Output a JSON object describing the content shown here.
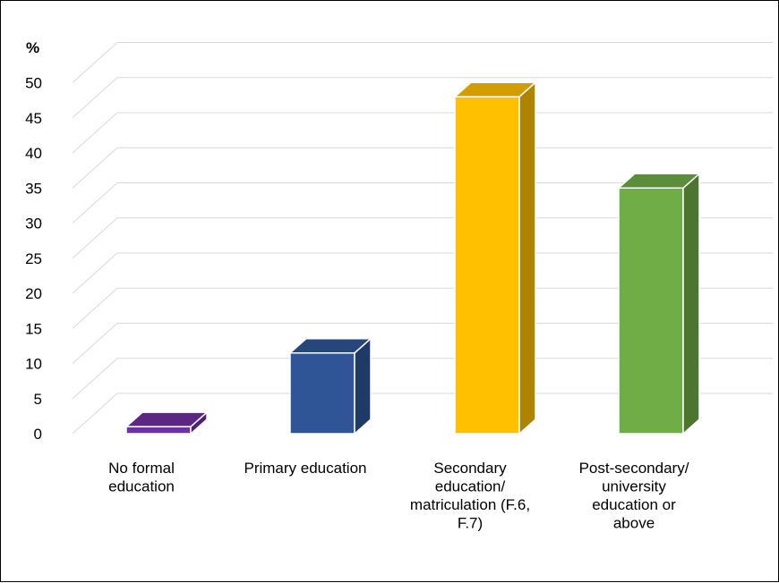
{
  "chart_data": {
    "type": "bar",
    "style": "3d-column",
    "y_unit_label": "%",
    "categories": [
      [
        "No formal",
        "education"
      ],
      [
        "Primary education"
      ],
      [
        "Secondary",
        "education/",
        "matriculation (F.6,",
        "F.7)"
      ],
      [
        "Post-secondary/",
        "university",
        "education or",
        "above"
      ]
    ],
    "values": [
      1,
      11.5,
      48,
      35
    ],
    "colors": [
      "#7030A0",
      "#2F5597",
      "#FFC000",
      "#70AD47"
    ],
    "ylim": [
      0,
      50
    ],
    "yticks": [
      0,
      5,
      10,
      15,
      20,
      25,
      30,
      35,
      40,
      45,
      50
    ],
    "grid": true,
    "legend": "none"
  }
}
